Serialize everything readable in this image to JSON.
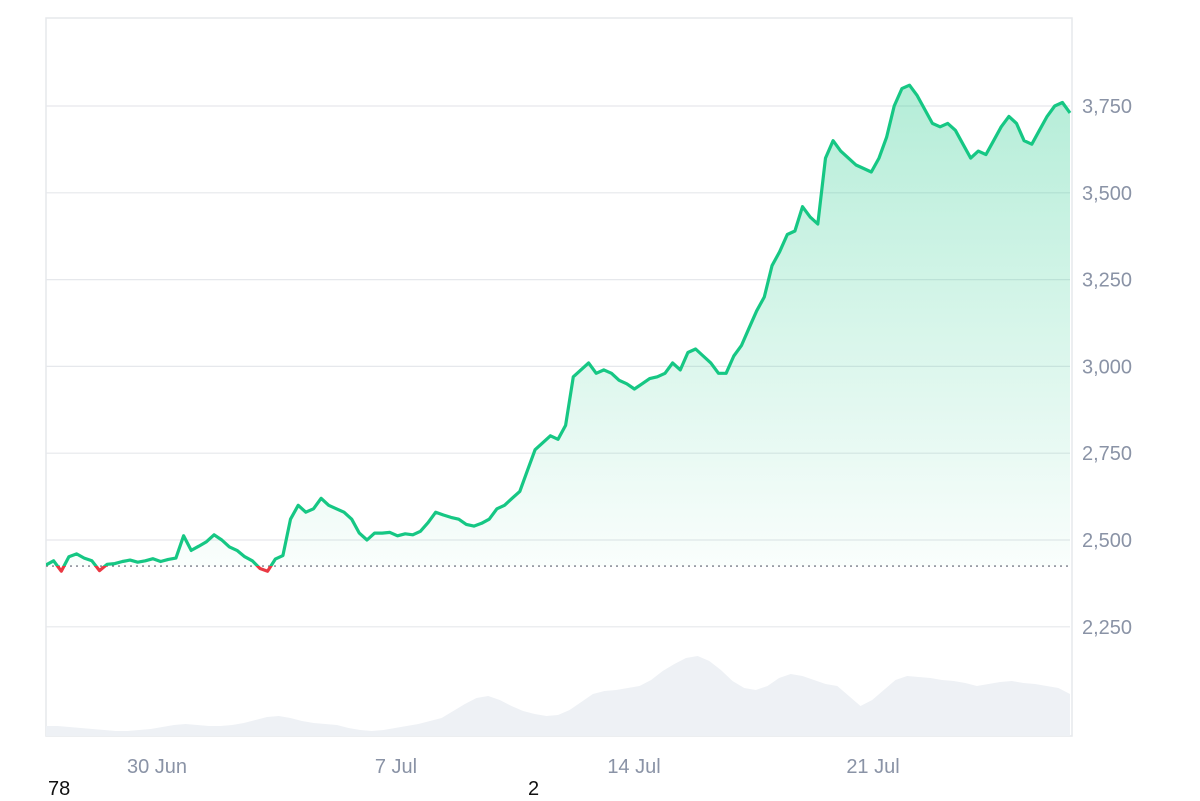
{
  "chart_data": {
    "type": "area",
    "baseline": 2425,
    "ylim": [
      2000,
      4000
    ],
    "y_ticks": [
      "2,250",
      "2,500",
      "2,750",
      "3,000",
      "3,250",
      "3,500",
      "3,750"
    ],
    "x_ticks": [
      "30 Jun",
      "7 Jul",
      "14 Jul",
      "21 Jul"
    ],
    "grid": true,
    "colors": {
      "up": "#16c784",
      "down": "#ea3943",
      "volume": "#eef1f5",
      "grid": "#e6e8ec",
      "axis_text": "#8a93a6"
    },
    "series": [
      {
        "values": [
          2428,
          2440,
          2410,
          2452,
          2460,
          2448,
          2440,
          2412,
          2430,
          2432,
          2438,
          2442,
          2436,
          2440,
          2446,
          2438,
          2444,
          2448,
          2512,
          2470,
          2482,
          2495,
          2515,
          2500,
          2480,
          2470,
          2452,
          2440,
          2418,
          2410,
          2445,
          2455,
          2560,
          2600,
          2580,
          2590,
          2620,
          2600,
          2590,
          2580,
          2560,
          2520,
          2500,
          2520,
          2520,
          2522,
          2512,
          2518,
          2515,
          2525,
          2550,
          2580,
          2572,
          2565,
          2560,
          2545,
          2540,
          2548,
          2560,
          2590,
          2600,
          2620,
          2640,
          2700,
          2760,
          2780,
          2800,
          2790,
          2830,
          2970,
          2990,
          3010,
          2980,
          2990,
          2980,
          2960,
          2950,
          2935,
          2950,
          2965,
          2970,
          2980,
          3010,
          2990,
          3040,
          3050,
          3030,
          3010,
          2980,
          2980,
          3030,
          3060,
          3110,
          3160,
          3200,
          3290,
          3330,
          3380,
          3390,
          3460,
          3430,
          3410,
          3600,
          3650,
          3620,
          3600,
          3580,
          3570,
          3560,
          3600,
          3660,
          3750,
          3800,
          3810,
          3780,
          3740,
          3700,
          3690,
          3700,
          3680,
          3640,
          3600,
          3620,
          3610,
          3650,
          3690,
          3720,
          3700,
          3650,
          3640,
          3680,
          3720,
          3750,
          3760,
          3730
        ]
      }
    ],
    "volume": [
      0.1,
      0.1,
      0.09,
      0.08,
      0.07,
      0.06,
      0.05,
      0.05,
      0.06,
      0.07,
      0.09,
      0.11,
      0.12,
      0.11,
      0.1,
      0.1,
      0.11,
      0.13,
      0.16,
      0.19,
      0.2,
      0.18,
      0.15,
      0.13,
      0.12,
      0.11,
      0.08,
      0.06,
      0.05,
      0.06,
      0.08,
      0.1,
      0.12,
      0.15,
      0.18,
      0.25,
      0.32,
      0.38,
      0.4,
      0.36,
      0.3,
      0.25,
      0.22,
      0.2,
      0.21,
      0.26,
      0.34,
      0.42,
      0.45,
      0.46,
      0.48,
      0.5,
      0.56,
      0.65,
      0.72,
      0.78,
      0.8,
      0.75,
      0.66,
      0.55,
      0.48,
      0.46,
      0.5,
      0.58,
      0.62,
      0.6,
      0.56,
      0.52,
      0.5,
      0.4,
      0.3,
      0.36,
      0.46,
      0.56,
      0.6,
      0.59,
      0.58,
      0.56,
      0.55,
      0.53,
      0.5,
      0.52,
      0.54,
      0.55,
      0.53,
      0.52,
      0.5,
      0.48,
      0.42
    ]
  },
  "footer": {
    "left_label": "78",
    "mid_label": "2"
  }
}
